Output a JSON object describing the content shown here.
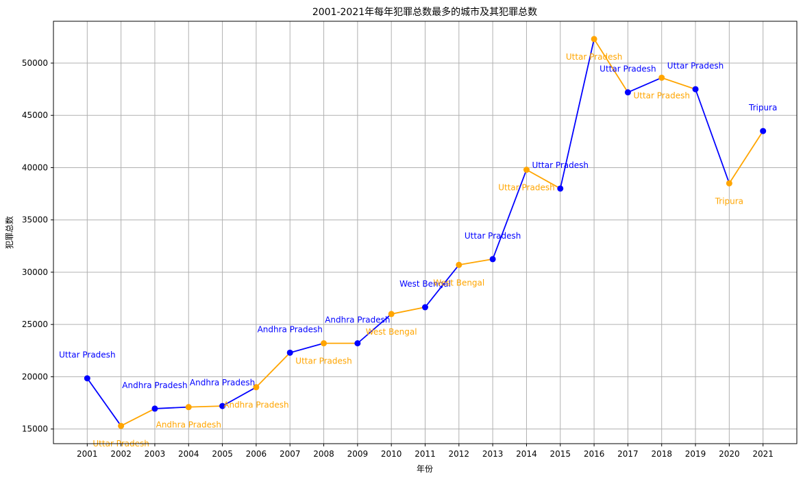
{
  "chart_data": {
    "type": "line",
    "title": "2001-2021年每年犯罪总数最多的城市及其犯罪总数",
    "xlabel": "年份",
    "ylabel": "犯罪总数",
    "x": [
      2001,
      2002,
      2003,
      2004,
      2005,
      2006,
      2007,
      2008,
      2009,
      2010,
      2011,
      2012,
      2013,
      2014,
      2015,
      2016,
      2017,
      2018,
      2019,
      2020,
      2021
    ],
    "values": [
      19850,
      15300,
      16950,
      17100,
      17200,
      19000,
      22300,
      23200,
      23200,
      26000,
      26650,
      30700,
      31250,
      39800,
      38000,
      52300,
      47200,
      48600,
      47500,
      38500,
      43500
    ],
    "point_labels": [
      "Uttar Pradesh",
      "Uttar Pradesh",
      "Andhra Pradesh",
      "Andhra Pradesh",
      "Andhra Pradesh",
      "Andhra Pradesh",
      "Andhra Pradesh",
      "Uttar Pradesh",
      "Andhra Pradesh",
      "West Bengal",
      "West Bengal",
      "West Bengal",
      "Uttar Pradesh",
      "Uttar Pradesh",
      "Uttar Pradesh",
      "Uttar Pradesh",
      "Uttar Pradesh",
      "Uttar Pradesh",
      "Uttar Pradesh",
      "Tripura",
      "Tripura"
    ],
    "xlim": [
      2000,
      2022
    ],
    "ylim": [
      13600,
      54000
    ],
    "y_ticks": [
      15000,
      20000,
      25000,
      30000,
      35000,
      40000,
      45000,
      50000
    ],
    "grid": true,
    "colors": {
      "odd_year": "#0000ff",
      "even_year": "#ffa500",
      "axis": "#000000",
      "grid": "#b0b0b0"
    }
  }
}
